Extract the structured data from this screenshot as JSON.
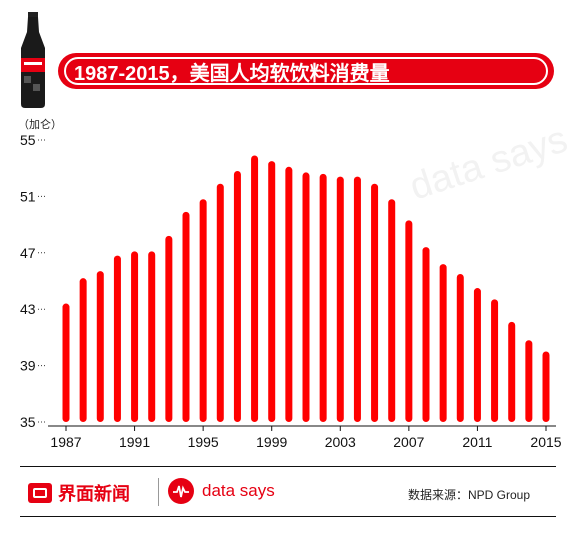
{
  "header": {
    "title": "1987-2015，美国人均软饮料消费量",
    "unit_label": "（加仑）"
  },
  "footer": {
    "brand_primary": "界面新闻",
    "brand_secondary": "data says",
    "source": "数据来源：NPD Group"
  },
  "watermark": "data says",
  "colors": {
    "accent": "#e60012",
    "bar": "#ff0000"
  },
  "chart_data": {
    "type": "bar",
    "title": "1987-2015，美国人均软饮料消费量",
    "ylabel": "（加仑）",
    "xlabel": "",
    "ylim": [
      35,
      55
    ],
    "yticks": [
      35,
      39,
      43,
      47,
      51,
      55
    ],
    "xtick_labels": [
      "1987",
      "1991",
      "1995",
      "1999",
      "2003",
      "2007",
      "2011",
      "2015"
    ],
    "categories": [
      "1987",
      "1988",
      "1989",
      "1990",
      "1991",
      "1992",
      "1993",
      "1994",
      "1995",
      "1996",
      "1997",
      "1998",
      "1999",
      "2000",
      "2001",
      "2002",
      "2003",
      "2004",
      "2005",
      "2006",
      "2007",
      "2008",
      "2009",
      "2010",
      "2011",
      "2012",
      "2013",
      "2014",
      "2015"
    ],
    "values": [
      43.4,
      45.2,
      45.7,
      46.8,
      47.1,
      47.1,
      48.2,
      49.9,
      50.8,
      51.9,
      52.8,
      53.9,
      53.5,
      53.1,
      52.7,
      52.6,
      52.4,
      52.4,
      51.9,
      50.8,
      49.3,
      47.4,
      46.2,
      45.5,
      44.5,
      43.7,
      42.1,
      40.8,
      40.0
    ],
    "grid": false,
    "legend": "none"
  }
}
